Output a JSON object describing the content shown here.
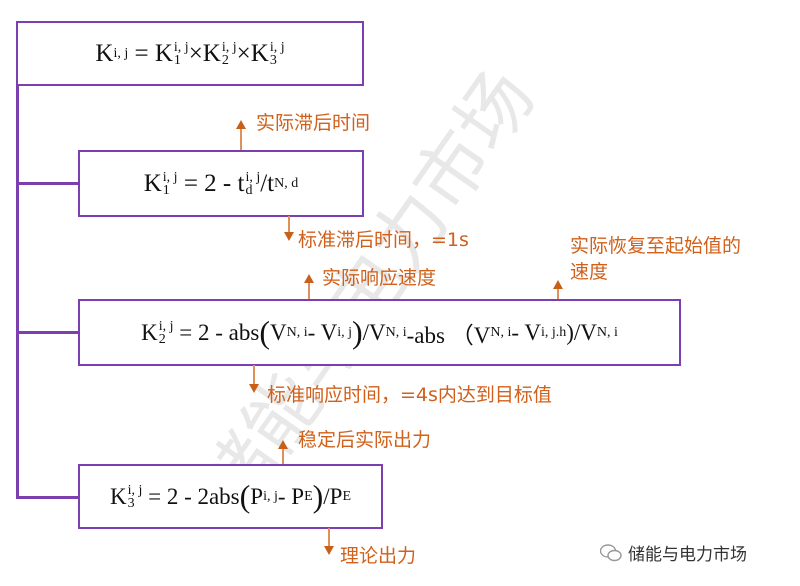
{
  "watermark": "储能与电力市场",
  "logo_text": "储能与电力市场",
  "colors": {
    "box_border": "#7b3fb0",
    "annotation": "#d0601a"
  },
  "formulas": {
    "k": {
      "lhs": "K",
      "sup": "i, j",
      "eq": "=",
      "t1": "K",
      "s1": "1",
      "t2": "K",
      "s2": "2",
      "t3": "K",
      "s3": "3",
      "times": "×"
    },
    "k1": {
      "lhs": "K",
      "sub": "1",
      "sup": "i, j",
      "rhs": "= 2 - t",
      "rsub": "d",
      "rsup": "i, j",
      "div": "/t",
      "dsub": "N, d"
    },
    "k2": {
      "lhs": "K",
      "sub": "2",
      "sup": "i, j",
      "p1": "= 2 - abs",
      "paren_open": "(",
      "v1": "V",
      "v1sub": "N, i",
      "minus": " - V",
      "v2sub": "i, j",
      "paren_close": ")",
      "p2": "/V",
      "p2sub": "N, i",
      "p3": " -abs （V",
      "p3sub": "N, i",
      "p4": " - V",
      "p4sub": "i, j.h",
      "p5": ")/V",
      "p5sub": "N, i"
    },
    "k3": {
      "lhs": "K",
      "sub": "3",
      "sup": "i, j",
      "p1": "= 2 - 2abs",
      "paren_open": "(",
      "v1": "P",
      "v1sub": "i, j",
      "minus": " - P",
      "v2sub": "E",
      "paren_close": ")",
      "p2": "/P",
      "p2sub": "E"
    }
  },
  "annotations": {
    "actual_lag": "实际滞后时间",
    "std_lag": "标准滞后时间，=1s",
    "actual_response": "实际响应速度",
    "recovery_1": "实际恢复至起始值的",
    "recovery_2": "速度",
    "std_response": "标准响应时间，=4s内达到目标值",
    "actual_output": "稳定后实际出力",
    "theory_output": "理论出力"
  }
}
